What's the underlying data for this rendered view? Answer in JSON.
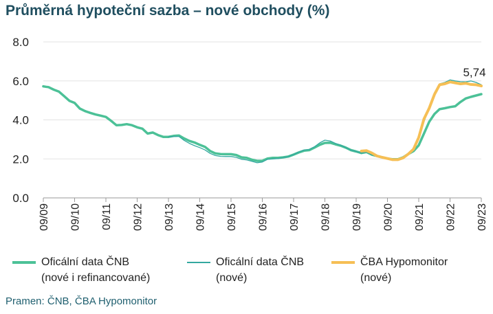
{
  "chart_data": {
    "type": "line",
    "title": "Průměrná hypoteční sazba – nové obchody (%)",
    "xlabel": "",
    "ylabel": "",
    "ylim": [
      0,
      8
    ],
    "yticks": [
      "0.0",
      "2.0",
      "4.0",
      "6.0",
      "8.0"
    ],
    "x_ticks": [
      "09/09",
      "09/10",
      "09/11",
      "09/12",
      "09/13",
      "09/14",
      "09/15",
      "09/16",
      "09/17",
      "09/18",
      "09/19",
      "09/20",
      "09/21",
      "09/22",
      "09/23"
    ],
    "grid": true,
    "legend_position": "bottom",
    "annotation": "5,74",
    "series": [
      {
        "name_line1": "Oficální data ČNB",
        "name_line2": "(nové i refinancované)",
        "color": "#4cc197",
        "points": [
          [
            "2009-09",
            5.72
          ],
          [
            "2009-10",
            5.7
          ],
          [
            "2009-11",
            5.68
          ],
          [
            "2010-01",
            5.55
          ],
          [
            "2010-03",
            5.45
          ],
          [
            "2010-05",
            5.22
          ],
          [
            "2010-07",
            4.98
          ],
          [
            "2010-09",
            4.87
          ],
          [
            "2010-11",
            4.58
          ],
          [
            "2011-01",
            4.45
          ],
          [
            "2011-03",
            4.36
          ],
          [
            "2011-05",
            4.28
          ],
          [
            "2011-07",
            4.22
          ],
          [
            "2011-09",
            4.15
          ],
          [
            "2011-11",
            3.95
          ],
          [
            "2012-01",
            3.73
          ],
          [
            "2012-03",
            3.74
          ],
          [
            "2012-05",
            3.78
          ],
          [
            "2012-07",
            3.73
          ],
          [
            "2012-09",
            3.62
          ],
          [
            "2012-11",
            3.55
          ],
          [
            "2013-01",
            3.3
          ],
          [
            "2013-03",
            3.35
          ],
          [
            "2013-05",
            3.22
          ],
          [
            "2013-07",
            3.13
          ],
          [
            "2013-09",
            3.13
          ],
          [
            "2013-11",
            3.18
          ],
          [
            "2014-01",
            3.2
          ],
          [
            "2014-03",
            3.05
          ],
          [
            "2014-05",
            2.92
          ],
          [
            "2014-07",
            2.84
          ],
          [
            "2014-09",
            2.72
          ],
          [
            "2014-11",
            2.62
          ],
          [
            "2015-01",
            2.4
          ],
          [
            "2015-03",
            2.28
          ],
          [
            "2015-05",
            2.25
          ],
          [
            "2015-07",
            2.24
          ],
          [
            "2015-09",
            2.24
          ],
          [
            "2015-11",
            2.2
          ],
          [
            "2016-01",
            2.08
          ],
          [
            "2016-03",
            2.05
          ],
          [
            "2016-05",
            1.96
          ],
          [
            "2016-07",
            1.9
          ],
          [
            "2016-09",
            1.9
          ],
          [
            "2016-11",
            2.02
          ],
          [
            "2017-01",
            2.05
          ],
          [
            "2017-03",
            2.05
          ],
          [
            "2017-05",
            2.08
          ],
          [
            "2017-07",
            2.12
          ],
          [
            "2017-09",
            2.22
          ],
          [
            "2017-11",
            2.33
          ],
          [
            "2018-01",
            2.42
          ],
          [
            "2018-03",
            2.45
          ],
          [
            "2018-05",
            2.58
          ],
          [
            "2018-07",
            2.72
          ],
          [
            "2018-09",
            2.82
          ],
          [
            "2018-11",
            2.83
          ],
          [
            "2019-01",
            2.75
          ],
          [
            "2019-03",
            2.68
          ],
          [
            "2019-05",
            2.58
          ],
          [
            "2019-07",
            2.45
          ],
          [
            "2019-09",
            2.38
          ],
          [
            "2019-11",
            2.3
          ],
          [
            "2020-01",
            2.35
          ],
          [
            "2020-03",
            2.22
          ],
          [
            "2020-05",
            2.15
          ],
          [
            "2020-07",
            2.08
          ],
          [
            "2020-09",
            2.02
          ],
          [
            "2020-11",
            1.98
          ],
          [
            "2021-01",
            1.98
          ],
          [
            "2021-03",
            2.08
          ],
          [
            "2021-05",
            2.25
          ],
          [
            "2021-07",
            2.4
          ],
          [
            "2021-09",
            2.7
          ],
          [
            "2021-11",
            3.3
          ],
          [
            "2022-01",
            3.9
          ],
          [
            "2022-03",
            4.3
          ],
          [
            "2022-05",
            4.55
          ],
          [
            "2022-07",
            4.6
          ],
          [
            "2022-09",
            4.66
          ],
          [
            "2022-11",
            4.7
          ],
          [
            "2023-01",
            4.92
          ],
          [
            "2023-03",
            5.1
          ],
          [
            "2023-05",
            5.18
          ],
          [
            "2023-07",
            5.25
          ],
          [
            "2023-09",
            5.32
          ]
        ]
      },
      {
        "name_line1": "Oficální data ČNB",
        "name_line2": "(nové)",
        "color": "#33a8a0",
        "points": [
          [
            "2013-09",
            3.13
          ],
          [
            "2013-11",
            3.15
          ],
          [
            "2014-01",
            3.15
          ],
          [
            "2014-03",
            2.95
          ],
          [
            "2014-05",
            2.8
          ],
          [
            "2014-07",
            2.68
          ],
          [
            "2014-09",
            2.58
          ],
          [
            "2014-11",
            2.46
          ],
          [
            "2015-01",
            2.28
          ],
          [
            "2015-03",
            2.17
          ],
          [
            "2015-05",
            2.13
          ],
          [
            "2015-07",
            2.12
          ],
          [
            "2015-09",
            2.12
          ],
          [
            "2015-11",
            2.08
          ],
          [
            "2016-01",
            1.98
          ],
          [
            "2016-03",
            1.95
          ],
          [
            "2016-05",
            1.88
          ],
          [
            "2016-07",
            1.8
          ],
          [
            "2016-09",
            1.84
          ],
          [
            "2016-11",
            1.98
          ],
          [
            "2017-01",
            2.0
          ],
          [
            "2017-03",
            2.02
          ],
          [
            "2017-05",
            2.06
          ],
          [
            "2017-07",
            2.12
          ],
          [
            "2017-09",
            2.22
          ],
          [
            "2017-11",
            2.35
          ],
          [
            "2018-01",
            2.45
          ],
          [
            "2018-03",
            2.48
          ],
          [
            "2018-05",
            2.62
          ],
          [
            "2018-07",
            2.82
          ],
          [
            "2018-09",
            2.96
          ],
          [
            "2018-11",
            2.92
          ],
          [
            "2019-01",
            2.8
          ],
          [
            "2019-03",
            2.7
          ],
          [
            "2019-05",
            2.58
          ],
          [
            "2019-07",
            2.45
          ],
          [
            "2019-09",
            2.38
          ],
          [
            "2019-11",
            2.3
          ],
          [
            "2020-01",
            2.35
          ],
          [
            "2020-03",
            2.2
          ],
          [
            "2020-05",
            2.12
          ],
          [
            "2020-07",
            2.05
          ],
          [
            "2020-09",
            2.0
          ],
          [
            "2020-11",
            1.96
          ],
          [
            "2021-01",
            1.98
          ],
          [
            "2021-03",
            2.1
          ],
          [
            "2021-05",
            2.3
          ],
          [
            "2021-07",
            2.55
          ],
          [
            "2021-09",
            3.0
          ],
          [
            "2021-11",
            3.9
          ],
          [
            "2022-01",
            4.6
          ],
          [
            "2022-03",
            5.4
          ],
          [
            "2022-05",
            5.85
          ],
          [
            "2022-07",
            5.92
          ],
          [
            "2022-09",
            6.05
          ],
          [
            "2022-11",
            6.0
          ],
          [
            "2023-01",
            5.96
          ],
          [
            "2023-03",
            5.95
          ],
          [
            "2023-05",
            6.0
          ],
          [
            "2023-07",
            5.92
          ],
          [
            "2023-09",
            5.8
          ]
        ]
      },
      {
        "name_line1": "ČBA Hypomonitor",
        "name_line2": "(nové)",
        "color": "#f6bf55",
        "points": [
          [
            "2019-11",
            2.4
          ],
          [
            "2020-01",
            2.42
          ],
          [
            "2020-03",
            2.3
          ],
          [
            "2020-05",
            2.15
          ],
          [
            "2020-07",
            2.08
          ],
          [
            "2020-09",
            2.02
          ],
          [
            "2020-11",
            1.96
          ],
          [
            "2021-01",
            1.96
          ],
          [
            "2021-03",
            2.05
          ],
          [
            "2021-05",
            2.25
          ],
          [
            "2021-07",
            2.5
          ],
          [
            "2021-09",
            3.1
          ],
          [
            "2021-11",
            4.05
          ],
          [
            "2022-01",
            4.6
          ],
          [
            "2022-03",
            5.3
          ],
          [
            "2022-05",
            5.8
          ],
          [
            "2022-07",
            5.85
          ],
          [
            "2022-09",
            5.95
          ],
          [
            "2022-11",
            5.9
          ],
          [
            "2023-01",
            5.85
          ],
          [
            "2023-03",
            5.88
          ],
          [
            "2023-05",
            5.82
          ],
          [
            "2023-07",
            5.8
          ],
          [
            "2023-09",
            5.74
          ]
        ]
      }
    ]
  },
  "source": "Pramen: ČNB, ČBA Hypomonitor"
}
